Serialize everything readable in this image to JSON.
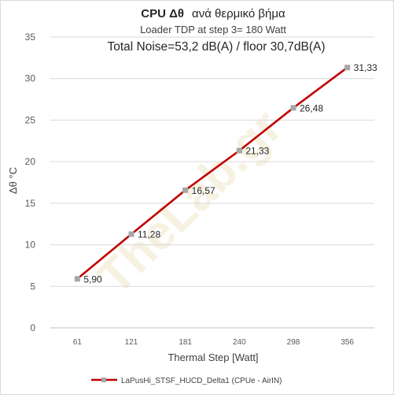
{
  "chart_data": {
    "type": "line",
    "title_bold": "CPU  Δθ",
    "title_rest": "ανά θερμικό βήμα",
    "subtitle": "Loader TDP at step 3= 180 Watt",
    "annotation": "Total Noise=53,2 dB(A) / floor 30,7dB(A)",
    "xlabel": "Thermal Step [Watt]",
    "ylabel": "Δθ °C",
    "categories": [
      "61",
      "121",
      "181",
      "240",
      "298",
      "356"
    ],
    "ylim": [
      0,
      35
    ],
    "yticks": [
      0,
      5,
      10,
      15,
      20,
      25,
      30,
      35
    ],
    "grid": true,
    "legend_position": "bottom",
    "watermark": "TheLab.gr",
    "series": [
      {
        "name": "LaPusHi_STSF_HUCD_Delta1 (CPUe - AirIN)",
        "values": [
          5.9,
          11.28,
          16.57,
          21.33,
          26.48,
          31.33
        ],
        "data_labels": [
          "5,90",
          "11,28",
          "16,57",
          "21,33",
          "26,48",
          "31,33"
        ],
        "line_color": "#c00000",
        "marker_color": "#a6a6a6"
      }
    ]
  }
}
